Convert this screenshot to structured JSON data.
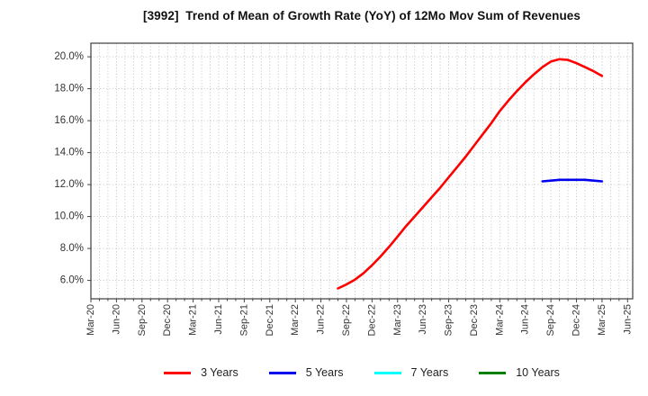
{
  "header": {
    "title": "[3992]  Trend of Mean of Growth Rate (YoY) of 12Mo Mov Sum of Revenues"
  },
  "chart_data": {
    "type": "line",
    "title": "[3992]  Trend of Mean of Growth Rate (YoY) of 12Mo Mov Sum of Revenues",
    "x_axis": {
      "tick_labels": [
        "Mar-20",
        "Jun-20",
        "Sep-20",
        "Dec-20",
        "Mar-21",
        "Jun-21",
        "Sep-21",
        "Dec-21",
        "Mar-22",
        "Jun-22",
        "Sep-22",
        "Dec-22",
        "Mar-23",
        "Jun-23",
        "Sep-23",
        "Dec-23",
        "Mar-24",
        "Jun-24",
        "Sep-24",
        "Dec-24",
        "Mar-25",
        "Jun-25"
      ],
      "months_between_ticks": 3,
      "xlim_months": [
        0,
        63.6
      ],
      "minor_grid": "monthly"
    },
    "y_axis": {
      "unit": "%",
      "tick_values": [
        6,
        8,
        10,
        12,
        14,
        16,
        18,
        20
      ],
      "tick_labels": [
        "6.0%",
        "8.0%",
        "10.0%",
        "12.0%",
        "14.0%",
        "16.0%",
        "18.0%",
        "20.0%"
      ],
      "ylim": [
        4.85,
        20.85
      ]
    },
    "grid": {
      "visible": true,
      "style": "dotted",
      "color": "#b3b3b3"
    },
    "legend": {
      "position": "bottom",
      "labels": [
        "3 Years",
        "5 Years",
        "7 Years",
        "10 Years"
      ]
    },
    "series": [
      {
        "name": "3 Years",
        "color": "#ff0000",
        "start_label": "Aug-22",
        "start_month_index": 29,
        "values": [
          5.5,
          5.75,
          6.05,
          6.45,
          6.95,
          7.5,
          8.1,
          8.75,
          9.4,
          10.0,
          10.6,
          11.2,
          11.8,
          12.45,
          13.1,
          13.75,
          14.45,
          15.15,
          15.85,
          16.6,
          17.25,
          17.85,
          18.4,
          18.9,
          19.35,
          19.7,
          19.85,
          19.8,
          19.6,
          19.35,
          19.1,
          18.8
        ]
      },
      {
        "name": "5 Years",
        "color": "#0000ee",
        "start_label": "Aug-24",
        "start_month_index": 53,
        "values": [
          12.2,
          12.25,
          12.3,
          12.3,
          12.3,
          12.3,
          12.25,
          12.2
        ]
      },
      {
        "name": "7 Years",
        "color": "#00ffff",
        "start_label": null,
        "start_month_index": null,
        "values": []
      },
      {
        "name": "10 Years",
        "color": "#008000",
        "start_label": null,
        "start_month_index": null,
        "values": []
      }
    ]
  }
}
